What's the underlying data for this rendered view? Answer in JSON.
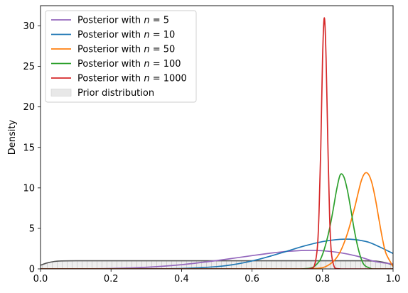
{
  "chart_data": {
    "type": "line",
    "title": "",
    "xlabel": "",
    "ylabel": "Density",
    "xlim": [
      0.0,
      1.0
    ],
    "ylim": [
      0,
      32.5
    ],
    "xticks": [
      "0.0",
      "0.2",
      "0.4",
      "0.6",
      "0.8",
      "1.0"
    ],
    "yticks": [
      "0",
      "5",
      "10",
      "15",
      "20",
      "25",
      "30"
    ],
    "grid": false,
    "legend_position": "top-left",
    "prior": {
      "name": "Prior distribution",
      "fill_color": "#e8e8e8",
      "edge_color": "#555555",
      "x": [
        0.0,
        0.02,
        0.04,
        0.06,
        0.1,
        0.2,
        0.4,
        0.6,
        0.8,
        0.9,
        0.94,
        0.96,
        0.98,
        1.0
      ],
      "y": [
        0.45,
        0.75,
        0.92,
        0.98,
        1.0,
        1.0,
        1.0,
        1.0,
        1.0,
        1.0,
        0.98,
        0.92,
        0.75,
        0.45
      ]
    },
    "series": [
      {
        "name": "Posterior with n = 5",
        "label_prefix": "Posterior with ",
        "label_n": "5",
        "color": "#9467bd",
        "x": [
          0.0,
          0.1,
          0.2,
          0.3,
          0.4,
          0.5,
          0.55,
          0.6,
          0.65,
          0.7,
          0.75,
          0.8,
          0.85,
          0.9,
          0.95,
          1.0
        ],
        "y": [
          0.0,
          0.005,
          0.05,
          0.2,
          0.52,
          1.03,
          1.33,
          1.64,
          1.93,
          2.16,
          2.28,
          2.24,
          2.0,
          1.55,
          0.9,
          0.6
        ]
      },
      {
        "name": "Posterior with n = 10",
        "label_prefix": "Posterior with ",
        "label_n": "10",
        "color": "#1f77b4",
        "x": [
          0.0,
          0.3,
          0.4,
          0.5,
          0.55,
          0.6,
          0.65,
          0.7,
          0.75,
          0.8,
          0.85,
          0.88,
          0.9,
          0.93,
          0.96,
          1.0
        ],
        "y": [
          0.0,
          0.01,
          0.05,
          0.28,
          0.55,
          0.98,
          1.55,
          2.2,
          2.85,
          3.37,
          3.65,
          3.66,
          3.57,
          3.3,
          2.75,
          1.9
        ]
      },
      {
        "name": "Posterior with n = 50",
        "label_prefix": "Posterior with ",
        "label_n": "50",
        "color": "#ff7f0e",
        "x": [
          0.75,
          0.8,
          0.83,
          0.85,
          0.87,
          0.89,
          0.9,
          0.91,
          0.92,
          0.93,
          0.94,
          0.95,
          0.96,
          0.97,
          0.98,
          1.0
        ],
        "y": [
          0.0,
          0.15,
          0.9,
          2.1,
          4.3,
          7.4,
          9.2,
          10.9,
          11.8,
          11.7,
          10.6,
          8.6,
          6.1,
          3.7,
          1.9,
          0.3
        ]
      },
      {
        "name": "Posterior with n = 100",
        "label_prefix": "Posterior with ",
        "label_n": "100",
        "color": "#2ca02c",
        "x": [
          0.74,
          0.77,
          0.79,
          0.8,
          0.81,
          0.82,
          0.83,
          0.84,
          0.85,
          0.86,
          0.87,
          0.88,
          0.89,
          0.9,
          0.91,
          0.92,
          0.94
        ],
        "y": [
          0.0,
          0.15,
          0.9,
          1.8,
          3.2,
          5.0,
          7.3,
          9.8,
          11.6,
          11.4,
          9.8,
          7.4,
          4.8,
          2.7,
          1.2,
          0.4,
          0.0
        ]
      },
      {
        "name": "Posterior with n = 1000",
        "label_prefix": "Posterior with ",
        "label_n": "1000",
        "color": "#d62728",
        "x": [
          0.76,
          0.775,
          0.785,
          0.79,
          0.795,
          0.8,
          0.805,
          0.81,
          0.815,
          0.82,
          0.825,
          0.835,
          0.85
        ],
        "y": [
          0.0,
          0.2,
          2.5,
          7.0,
          15.0,
          26.0,
          31.0,
          26.0,
          15.5,
          6.5,
          2.0,
          0.1,
          0.0
        ]
      }
    ]
  }
}
